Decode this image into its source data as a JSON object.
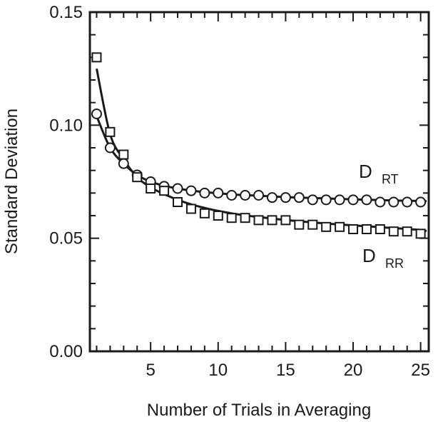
{
  "chart_data": {
    "type": "line",
    "xlabel": "Number of Trials in Averaging",
    "ylabel": "Standard Deviation",
    "xlim": [
      0.5,
      25.6
    ],
    "ylim": [
      0,
      0.15
    ],
    "x_ticks": [
      5,
      10,
      15,
      20,
      25
    ],
    "x_tick_labels": [
      "5",
      "10",
      "15",
      "20",
      "25"
    ],
    "y_ticks": [
      0,
      0.05,
      0.1,
      0.15
    ],
    "y_tick_labels": [
      "0.00",
      "0.05",
      "0.10",
      "0.15"
    ],
    "grid": false,
    "legend": "none",
    "series": [
      {
        "label_main": "D",
        "label_sub": "RT",
        "marker": "circle",
        "x": [
          1,
          2,
          3,
          4,
          5,
          6,
          7,
          8,
          9,
          10,
          11,
          12,
          13,
          14,
          15,
          16,
          17,
          18,
          19,
          20,
          21,
          22,
          23,
          24,
          25
        ],
        "y": [
          0.105,
          0.09,
          0.083,
          0.078,
          0.075,
          0.073,
          0.072,
          0.071,
          0.07,
          0.07,
          0.069,
          0.069,
          0.069,
          0.068,
          0.068,
          0.068,
          0.067,
          0.067,
          0.067,
          0.067,
          0.067,
          0.066,
          0.066,
          0.066,
          0.066
        ],
        "fit": [
          0.104,
          0.09,
          0.083,
          0.078,
          0.075,
          0.0732,
          0.072,
          0.0711,
          0.0704,
          0.0699,
          0.0694,
          0.0691,
          0.0688,
          0.0685,
          0.0682,
          0.068,
          0.0678,
          0.0676,
          0.0674,
          0.0672,
          0.067,
          0.0669,
          0.0667,
          0.0666,
          0.0665
        ]
      },
      {
        "label_main": "D",
        "label_sub": "RR",
        "marker": "square",
        "x": [
          1,
          2,
          3,
          4,
          5,
          6,
          7,
          8,
          9,
          10,
          11,
          12,
          13,
          14,
          15,
          16,
          17,
          18,
          19,
          20,
          21,
          22,
          23,
          24,
          25
        ],
        "y": [
          0.13,
          0.097,
          0.087,
          0.077,
          0.072,
          0.071,
          0.066,
          0.063,
          0.061,
          0.06,
          0.059,
          0.059,
          0.058,
          0.058,
          0.058,
          0.056,
          0.056,
          0.055,
          0.055,
          0.054,
          0.054,
          0.054,
          0.053,
          0.053,
          0.052
        ],
        "fit": [
          0.125,
          0.096,
          0.085,
          0.077,
          0.0725,
          0.0695,
          0.067,
          0.065,
          0.0634,
          0.0621,
          0.061,
          0.0601,
          0.0594,
          0.0587,
          0.0581,
          0.0575,
          0.057,
          0.0565,
          0.0561,
          0.0557,
          0.0553,
          0.0549,
          0.0545,
          0.0541,
          0.0537
        ]
      }
    ]
  }
}
